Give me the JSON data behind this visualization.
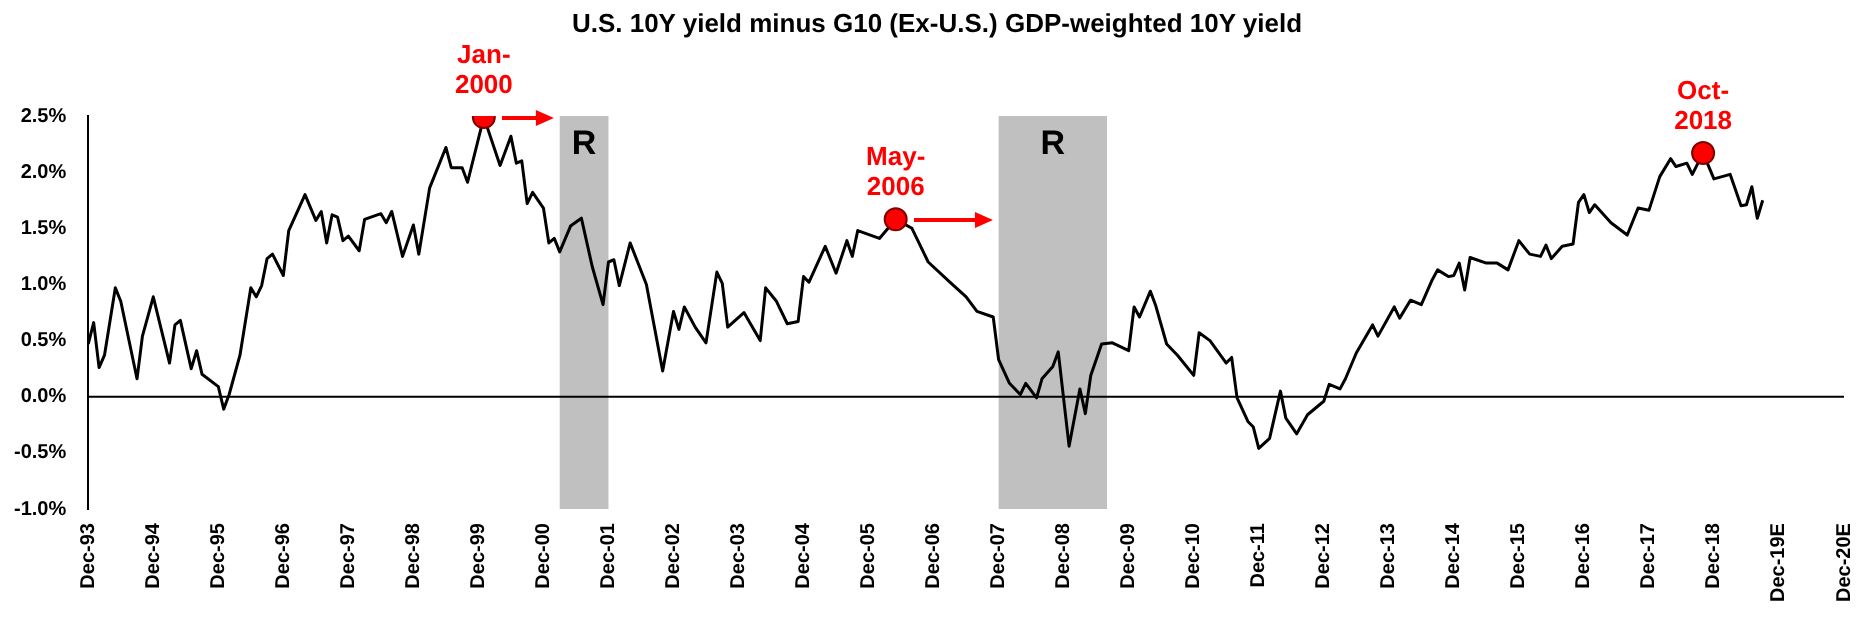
{
  "chart_data": {
    "type": "line",
    "title": "U.S. 10Y yield minus G10 (Ex-U.S.) GDP-weighted 10Y yield",
    "xlim": [
      "1993-12",
      "2020-12"
    ],
    "xticks": [
      {
        "value": "1993-12",
        "label": "Dec-93"
      },
      {
        "value": "1994-12",
        "label": "Dec-94"
      },
      {
        "value": "1995-12",
        "label": "Dec-95"
      },
      {
        "value": "1996-12",
        "label": "Dec-96"
      },
      {
        "value": "1997-12",
        "label": "Dec-97"
      },
      {
        "value": "1998-12",
        "label": "Dec-98"
      },
      {
        "value": "1999-12",
        "label": "Dec-99"
      },
      {
        "value": "2000-12",
        "label": "Dec-00"
      },
      {
        "value": "2001-12",
        "label": "Dec-01"
      },
      {
        "value": "2002-12",
        "label": "Dec-02"
      },
      {
        "value": "2003-12",
        "label": "Dec-03"
      },
      {
        "value": "2004-12",
        "label": "Dec-04"
      },
      {
        "value": "2005-12",
        "label": "Dec-05"
      },
      {
        "value": "2006-12",
        "label": "Dec-06"
      },
      {
        "value": "2007-12",
        "label": "Dec-07"
      },
      {
        "value": "2008-12",
        "label": "Dec-08"
      },
      {
        "value": "2009-12",
        "label": "Dec-09"
      },
      {
        "value": "2010-12",
        "label": "Dec-10"
      },
      {
        "value": "2011-12",
        "label": "Dec-11"
      },
      {
        "value": "2012-12",
        "label": "Dec-12"
      },
      {
        "value": "2013-12",
        "label": "Dec-13"
      },
      {
        "value": "2014-12",
        "label": "Dec-14"
      },
      {
        "value": "2015-12",
        "label": "Dec-15"
      },
      {
        "value": "2016-12",
        "label": "Dec-16"
      },
      {
        "value": "2017-12",
        "label": "Dec-17"
      },
      {
        "value": "2018-12",
        "label": "Dec-18"
      },
      {
        "value": "2019-12",
        "label": "Dec-19E"
      },
      {
        "value": "2020-12",
        "label": "Dec-20E"
      }
    ],
    "ylim": [
      -1.0,
      2.5
    ],
    "yticks": [
      {
        "value": -1.0,
        "label": "-1.0%"
      },
      {
        "value": -0.5,
        "label": "-0.5%"
      },
      {
        "value": 0,
        "label": "0.0%"
      },
      {
        "value": 0.5,
        "label": "0.5%"
      },
      {
        "value": 1.0,
        "label": "1.0%"
      },
      {
        "value": 1.5,
        "label": "1.5%"
      },
      {
        "value": 2.0,
        "label": "2.0%"
      },
      {
        "value": 2.5,
        "label": "2.5%"
      }
    ],
    "marker": "none",
    "line_style": "solid",
    "series": [
      {
        "color": "#000000",
        "x": [
          "1993-12",
          "1994-01",
          "1994-02",
          "1994-03",
          "1994-05",
          "1994-06",
          "1994-09",
          "1994-10",
          "1994-12",
          "1995-03",
          "1995-04",
          "1995-05",
          "1995-07",
          "1995-08",
          "1995-09",
          "1995-12",
          "1996-01",
          "1996-02",
          "1996-04",
          "1996-06",
          "1996-07",
          "1996-08",
          "1996-09",
          "1996-10",
          "1996-12",
          "1997-01",
          "1997-04",
          "1997-06",
          "1997-07",
          "1997-08",
          "1997-09",
          "1997-10",
          "1997-11",
          "1997-12",
          "1998-02",
          "1998-03",
          "1998-06",
          "1998-07",
          "1998-08",
          "1998-10",
          "1998-12",
          "1999-01",
          "1999-03",
          "1999-06",
          "1999-07",
          "1999-09",
          "1999-10",
          "2000-01",
          "2000-04",
          "2000-06",
          "2000-07",
          "2000-08",
          "2000-09",
          "2000-10",
          "2000-12",
          "2001-01",
          "2001-02",
          "2001-03",
          "2001-05",
          "2001-07",
          "2001-09",
          "2001-11",
          "2001-12",
          "2002-01",
          "2002-02",
          "2002-04",
          "2002-07",
          "2002-10",
          "2002-12",
          "2003-01",
          "2003-02",
          "2003-04",
          "2003-06",
          "2003-08",
          "2003-09",
          "2003-10",
          "2004-01",
          "2004-04",
          "2004-05",
          "2004-07",
          "2004-09",
          "2004-11",
          "2004-12",
          "2005-01",
          "2005-04",
          "2005-06",
          "2005-08",
          "2005-09",
          "2005-10",
          "2006-02",
          "2006-05",
          "2006-08",
          "2006-11",
          "2007-03",
          "2007-06",
          "2007-08",
          "2007-11",
          "2007-12",
          "2008-02",
          "2008-04",
          "2008-05",
          "2008-07",
          "2008-08",
          "2008-10",
          "2008-11",
          "2009-01",
          "2009-03",
          "2009-04",
          "2009-05",
          "2009-07",
          "2009-09",
          "2009-12",
          "2010-01",
          "2010-02",
          "2010-04",
          "2010-05",
          "2010-07",
          "2010-09",
          "2010-12",
          "2011-01",
          "2011-03",
          "2011-06",
          "2011-07",
          "2011-08",
          "2011-10",
          "2011-11",
          "2011-12",
          "2012-02",
          "2012-04",
          "2012-05",
          "2012-07",
          "2012-09",
          "2012-12",
          "2013-01",
          "2013-03",
          "2013-04",
          "2013-06",
          "2013-09",
          "2013-10",
          "2014-01",
          "2014-02",
          "2014-04",
          "2014-06",
          "2014-08",
          "2014-09",
          "2014-11",
          "2014-12",
          "2015-01",
          "2015-02",
          "2015-03",
          "2015-06",
          "2015-08",
          "2015-10",
          "2015-12",
          "2016-02",
          "2016-04",
          "2016-05",
          "2016-06",
          "2016-08",
          "2016-10",
          "2016-11",
          "2016-12",
          "2017-01",
          "2017-02",
          "2017-05",
          "2017-08",
          "2017-10",
          "2017-12",
          "2018-02",
          "2018-04",
          "2018-05",
          "2018-07",
          "2018-08",
          "2018-10",
          "2018-12",
          "2019-03",
          "2019-05",
          "2019-06",
          "2019-07",
          "2019-08",
          "2019-09"
        ],
        "values": [
          0.47,
          0.66,
          0.26,
          0.37,
          0.97,
          0.85,
          0.16,
          0.54,
          0.89,
          0.3,
          0.64,
          0.68,
          0.25,
          0.41,
          0.2,
          0.09,
          -0.11,
          0.02,
          0.37,
          0.97,
          0.89,
          0.99,
          1.23,
          1.27,
          1.08,
          1.48,
          1.8,
          1.57,
          1.65,
          1.37,
          1.62,
          1.6,
          1.39,
          1.43,
          1.3,
          1.58,
          1.63,
          1.55,
          1.65,
          1.25,
          1.53,
          1.27,
          1.86,
          2.22,
          2.04,
          2.04,
          1.91,
          2.49,
          2.06,
          2.32,
          2.08,
          2.1,
          1.72,
          1.82,
          1.68,
          1.37,
          1.41,
          1.29,
          1.52,
          1.59,
          1.16,
          0.82,
          1.2,
          1.22,
          0.99,
          1.37,
          1.0,
          0.23,
          0.76,
          0.6,
          0.8,
          0.62,
          0.48,
          1.11,
          1.01,
          0.62,
          0.75,
          0.5,
          0.97,
          0.85,
          0.65,
          0.67,
          1.07,
          1.02,
          1.34,
          1.1,
          1.39,
          1.25,
          1.48,
          1.41,
          1.58,
          1.5,
          1.2,
          1.02,
          0.89,
          0.76,
          0.71,
          0.33,
          0.12,
          0.02,
          0.12,
          -0.01,
          0.16,
          0.27,
          0.4,
          -0.44,
          0.07,
          -0.15,
          0.19,
          0.47,
          0.48,
          0.41,
          0.8,
          0.71,
          0.94,
          0.81,
          0.47,
          0.37,
          0.19,
          0.57,
          0.5,
          0.3,
          0.35,
          -0.01,
          -0.22,
          -0.27,
          -0.46,
          -0.37,
          0.05,
          -0.19,
          -0.33,
          -0.16,
          -0.04,
          0.11,
          0.07,
          0.16,
          0.39,
          0.64,
          0.54,
          0.8,
          0.7,
          0.86,
          0.82,
          1.04,
          1.13,
          1.07,
          1.08,
          1.19,
          0.95,
          1.24,
          1.19,
          1.19,
          1.13,
          1.39,
          1.27,
          1.25,
          1.35,
          1.23,
          1.34,
          1.36,
          1.73,
          1.8,
          1.64,
          1.71,
          1.55,
          1.44,
          1.68,
          1.66,
          1.96,
          2.12,
          2.05,
          2.08,
          1.98,
          2.17,
          1.94,
          1.98,
          1.7,
          1.71,
          1.87,
          1.59,
          1.75
        ]
      },
      {
        "type": "scatter",
        "color": "#ff0000",
        "marker": "circle",
        "x": [
          "2000-01",
          "2006-05",
          "2018-10"
        ],
        "values": [
          2.49,
          1.58,
          2.17
        ]
      }
    ],
    "bands": [
      {
        "axis": "x",
        "from": "2001-03",
        "to": "2001-12",
        "label": "R",
        "color": "#c0c0c0"
      },
      {
        "axis": "x",
        "from": "2007-12",
        "to": "2009-08",
        "label": "R",
        "color": "#c0c0c0"
      }
    ],
    "annotations": [
      {
        "text": "Jan-2000",
        "x": "2000-01",
        "y": 2.49
      },
      {
        "text": "May-2006",
        "x": "2006-05",
        "y": 1.58
      },
      {
        "text": "Oct-2018",
        "x": "2018-10",
        "y": 2.17
      }
    ],
    "legend": false
  }
}
